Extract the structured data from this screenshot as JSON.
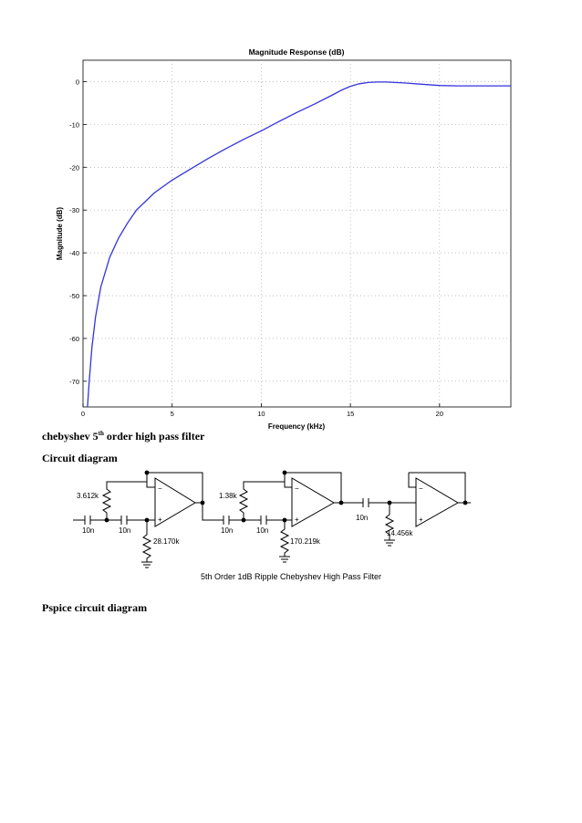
{
  "chart_data": {
    "type": "line",
    "title": "Magnitude Response (dB)",
    "xlabel": "Frequency (kHz)",
    "ylabel": "Magnitude (dB)",
    "xlim": [
      0,
      24
    ],
    "ylim": [
      -76,
      5
    ],
    "x_ticks": [
      0,
      5,
      10,
      15,
      20
    ],
    "y_ticks": [
      0,
      -10,
      -20,
      -30,
      -40,
      -50,
      -60,
      -70
    ],
    "grid": true,
    "line_color": "#3333dd",
    "series": [
      {
        "x": [
          0.25,
          0.35,
          0.5,
          0.7,
          1,
          1.5,
          2,
          2.5,
          3,
          4,
          5,
          6,
          7,
          8,
          9,
          10,
          11,
          12,
          13,
          14,
          14.5,
          15,
          15.5,
          16,
          16.5,
          17,
          18,
          19,
          20,
          21,
          22,
          23,
          24
        ],
        "y": [
          -76,
          -70,
          -62,
          -55,
          -48,
          -41,
          -36.5,
          -33,
          -30,
          -26,
          -23,
          -20.5,
          -18,
          -15.7,
          -13.5,
          -11.5,
          -9.3,
          -7.2,
          -5.2,
          -3.1,
          -2,
          -1.1,
          -0.5,
          -0.2,
          -0.1,
          -0.1,
          -0.3,
          -0.6,
          -0.9,
          -1,
          -1,
          -1,
          -1
        ]
      }
    ]
  },
  "caption": {
    "prefix": "chebyshev 5",
    "sup": "th",
    "suffix": " order high pass filter"
  },
  "circuit_heading": "Circuit diagram",
  "circuit": {
    "title": "5th Order 1dB Ripple Chebyshev High Pass Filter",
    "labels": {
      "r1": "3.612k",
      "c1": "10n",
      "c2": "10n",
      "r2": "28.170k",
      "r3": "1.38k",
      "c3": "10n",
      "c4": "10n",
      "r4": "170.219k",
      "c5": "10n",
      "r5": "14.456k"
    }
  },
  "pspice_heading": "Pspice circuit diagram"
}
